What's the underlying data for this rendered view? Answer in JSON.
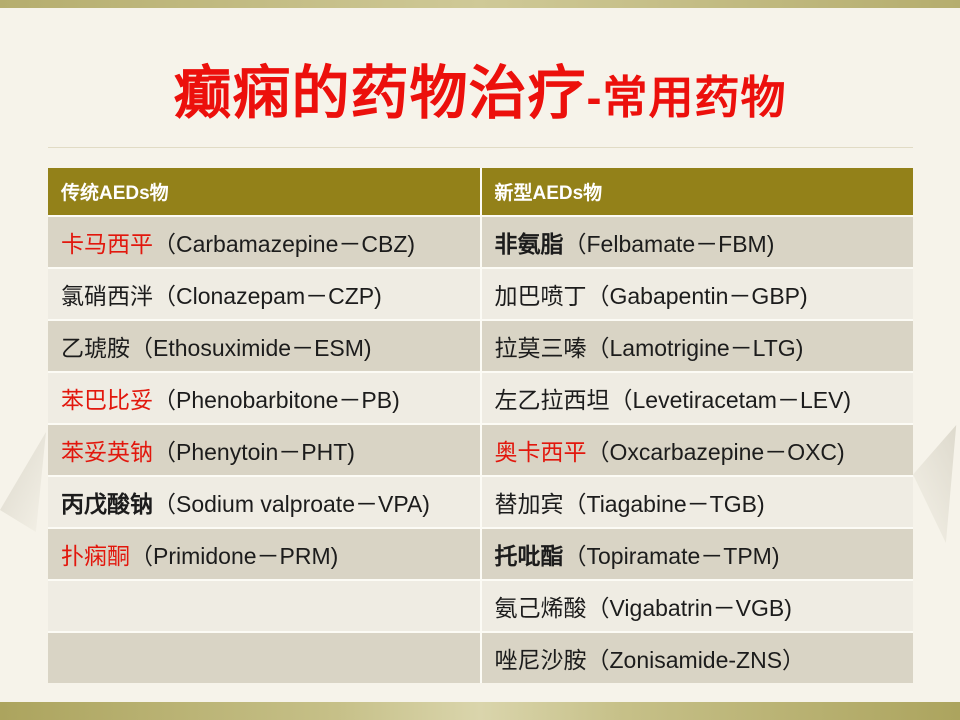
{
  "slide": {
    "title": {
      "main": "癫痫的药物治疗",
      "suffix": "-常用药物"
    },
    "colors": {
      "accent_red": "#EC100C",
      "drug_red": "#E2170D",
      "header_olive": "#938119",
      "row_dark": "#D9D4C5",
      "row_light": "#EFECE3",
      "band_olive": "#B5AD6E",
      "background": "#F6F3EA"
    },
    "table": {
      "headers": [
        "传统AEDs物",
        "新型AEDs物"
      ],
      "rows": [
        {
          "left": {
            "name": "卡马西平",
            "detail": "（Carbamazepine－CBZ)"
          },
          "right": {
            "name": "非氨脂",
            "detail": "（Felbamate－FBM)"
          }
        },
        {
          "left": {
            "name": "氯硝西泮",
            "detail": "（Clonazepam－CZP)"
          },
          "right": {
            "name": "加巴喷丁",
            "detail": "（Gabapentin－GBP)"
          }
        },
        {
          "left": {
            "name": "乙琥胺",
            "detail": "（Ethosuximide－ESM)"
          },
          "right": {
            "name": "拉莫三嗪",
            "detail": "（Lamotrigine－LTG)"
          }
        },
        {
          "left": {
            "name": "苯巴比妥",
            "detail": "（Phenobarbitone－PB)"
          },
          "right": {
            "name": "左乙拉西坦",
            "detail": "（Levetiracetam－LEV)"
          }
        },
        {
          "left": {
            "name": "苯妥英钠",
            "detail": "（Phenytoin－PHT)"
          },
          "right": {
            "name": "奥卡西平",
            "detail": "（Oxcarbazepine－OXC)"
          }
        },
        {
          "left": {
            "name": "丙戊酸钠",
            "detail": "（Sodium valproate－VPA)"
          },
          "right": {
            "name": "替加宾",
            "detail": "（Tiagabine－TGB)"
          }
        },
        {
          "left": {
            "name": "扑痫酮",
            "detail": "（Primidone－PRM)"
          },
          "right": {
            "name": "托吡酯",
            "detail": "（Topiramate－TPM)"
          }
        },
        {
          "left": {
            "name": "",
            "detail": ""
          },
          "right": {
            "name": "氨己烯酸",
            "detail": "（Vigabatrin－VGB)"
          }
        },
        {
          "left": {
            "name": "",
            "detail": ""
          },
          "right": {
            "name": "唑尼沙胺",
            "detail": "（Zonisamide-ZNS）"
          }
        }
      ]
    }
  }
}
